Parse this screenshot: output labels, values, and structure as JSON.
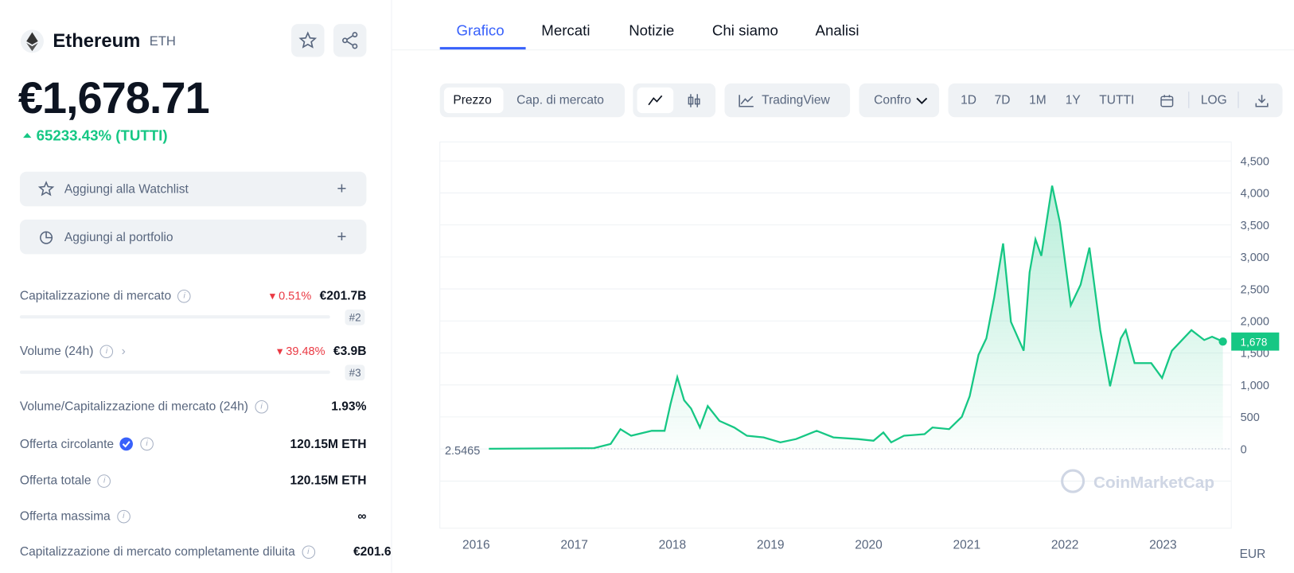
{
  "coin": {
    "name": "Ethereum",
    "symbol": "ETH",
    "price": "€1,678.71",
    "change": "65233.43% (TUTTI)"
  },
  "actions": [
    "Aggiungi alla Watchlist",
    "Aggiungi al portfolio"
  ],
  "stats": [
    {
      "label": "Capitalizzazione di mercato",
      "change": "0.51%",
      "value": "€201.7B",
      "rank": "#2"
    },
    {
      "label": "Volume (24h)",
      "change": "39.48%",
      "value": "€3.9B",
      "rank": "#3"
    },
    {
      "label": "Volume/Capitalizzazione di mercato (24h)",
      "value": "1.93%"
    },
    {
      "label": "Offerta circolante",
      "value": "120.15M ETH"
    },
    {
      "label": "Offerta totale",
      "value": "120.15M ETH"
    },
    {
      "label": "Offerta massima",
      "value": "∞"
    },
    {
      "label": "Capitalizzazione di mercato completamente diluita",
      "value": "€201.6"
    }
  ],
  "tabs": [
    "Grafico",
    "Mercati",
    "Notizie",
    "Chi siamo",
    "Analisi"
  ],
  "toolbar": {
    "modes": [
      "Prezzo",
      "Cap. di mercato"
    ],
    "tradingview": "TradingView",
    "compare": "Confronta",
    "ranges": [
      "1D",
      "7D",
      "1M",
      "1Y",
      "TUTTI"
    ],
    "log": "LOG"
  },
  "chart_data": {
    "type": "line",
    "x": [
      2016.13,
      2017.2,
      2017.37,
      2017.47,
      2017.58,
      2017.79,
      2017.92,
      2017.98,
      2018.05,
      2018.12,
      2018.19,
      2018.28,
      2018.36,
      2018.48,
      2018.63,
      2018.76,
      2018.93,
      2019.1,
      2019.26,
      2019.47,
      2019.64,
      2019.89,
      2020.05,
      2020.15,
      2020.23,
      2020.36,
      2020.57,
      2020.65,
      2020.82,
      2020.95,
      2021.03,
      2021.12,
      2021.2,
      2021.28,
      2021.37,
      2021.45,
      2021.58,
      2021.64,
      2021.7,
      2021.76,
      2021.87,
      2021.95,
      2022.06,
      2022.16,
      2022.25,
      2022.36,
      2022.46,
      2022.57,
      2022.62,
      2022.71,
      2022.88,
      2022.99,
      2023.09,
      2023.21,
      2023.29,
      2023.42,
      2023.5,
      2023.61
    ],
    "series": [
      {
        "name": "Prezzo",
        "color": "#16c784",
        "values": [
          2.5465,
          13,
          77,
          309,
          206,
          284,
          284,
          696,
          1122,
          761,
          632,
          335,
          670,
          438,
          335,
          206,
          180,
          103,
          155,
          284,
          180,
          155,
          129,
          258,
          103,
          206,
          232,
          335,
          309,
          503,
          825,
          1470,
          1728,
          2372,
          3210,
          1986,
          1534,
          2759,
          3275,
          3017,
          4113,
          3533,
          2243,
          2566,
          3146,
          1857,
          980,
          1728,
          1857,
          1341,
          1341,
          1109,
          1534,
          1728,
          1857,
          1702,
          1754,
          1678
        ]
      }
    ],
    "current": {
      "value": 1678,
      "label": "1,678"
    },
    "xlim": [
      2015.647,
      2023.679
    ],
    "xticks": [
      2016,
      2017,
      2018,
      2019,
      2020,
      2021,
      2022,
      2023
    ],
    "ylim": [
      0,
      4500
    ],
    "yticks": [
      0,
      500,
      {
        "value": 1000,
        "label": "1,000"
      },
      {
        "value": 1500,
        "label": "1,500"
      },
      {
        "value": 2000,
        "label": "2,000"
      },
      {
        "value": 2500,
        "label": "2,500"
      },
      {
        "value": 3000,
        "label": "3,000"
      },
      {
        "value": 3500,
        "label": "3,500"
      },
      {
        "value": 4000,
        "label": "4,000"
      },
      {
        "value": 4500,
        "label": "4,500"
      }
    ],
    "grid": true,
    "watermark": "CoinMarketCap",
    "currency": "EUR"
  }
}
